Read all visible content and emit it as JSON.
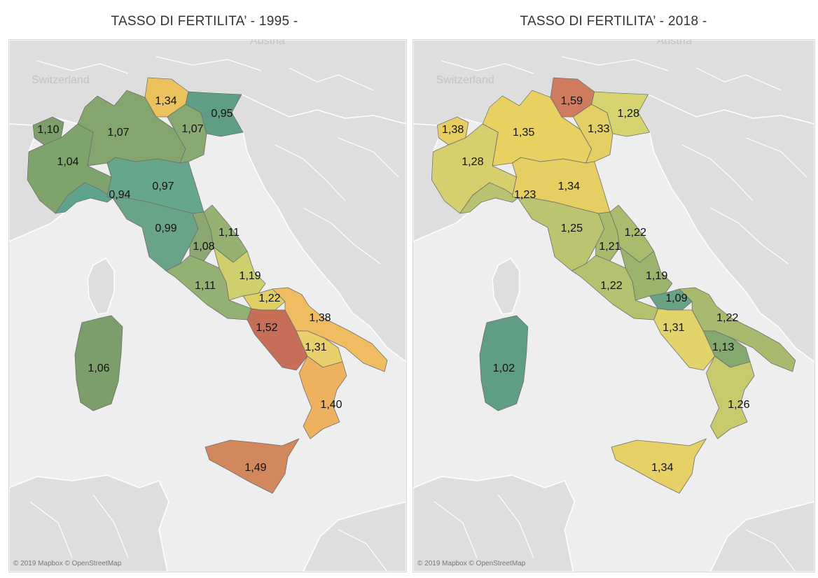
{
  "maps": [
    {
      "title": "TASSO DI FERTILITA’ - 1995 -",
      "credit": "© 2019 Mapbox © OpenStreetMap",
      "country_labels": [
        "Switzerland",
        "Austria"
      ],
      "regions": {
        "valle_aosta": "1,10",
        "piemonte": "1,04",
        "lombardia": "1,07",
        "trentino": "1,34",
        "veneto": "1,07",
        "friuli": "0,95",
        "liguria": "0,94",
        "emilia": "0,97",
        "toscana": "0,99",
        "umbria": "1,08",
        "marche": "1,11",
        "lazio": "1,11",
        "abruzzo": "1,19",
        "molise": "1,22",
        "campania": "1,52",
        "puglia": "1,38",
        "basilicata": "1,31",
        "calabria": "1,40",
        "sicilia": "1,49",
        "sardegna": "1,06"
      },
      "colors": {
        "valle_aosta": "#7c9e6a",
        "piemonte": "#7ea36b",
        "lombardia": "#84a56d",
        "trentino": "#ecc25c",
        "veneto": "#88aa72",
        "friuli": "#5f9e85",
        "liguria": "#5ea48c",
        "emilia": "#66a68a",
        "toscana": "#6aa488",
        "umbria": "#8aa86f",
        "marche": "#94b372",
        "lazio": "#93b172",
        "abruzzo": "#cfd06d",
        "molise": "#e0d064",
        "campania": "#c66e57",
        "puglia": "#efbc62",
        "basilicata": "#ead06a",
        "calabria": "#edb160",
        "sicilia": "#d2875c",
        "sardegna": "#7c9e6a"
      }
    },
    {
      "title": "TASSO DI FERTILITA’ - 2018 -",
      "credit": "© 2019 Mapbox © OpenStreetMap",
      "country_labels": [
        "Switzerland",
        "Austria"
      ],
      "regions": {
        "valle_aosta": "1,38",
        "piemonte": "1,28",
        "lombardia": "1,35",
        "trentino": "1,59",
        "veneto": "1,33",
        "friuli": "1,28",
        "liguria": "1,23",
        "emilia": "1,34",
        "toscana": "1,25",
        "umbria": "1,21",
        "marche": "1,22",
        "lazio": "1,22",
        "abruzzo": "1,19",
        "molise": "1,09",
        "campania": "1,31",
        "puglia": "1,22",
        "basilicata": "1,13",
        "calabria": "1,26",
        "sicilia": "1,34",
        "sardegna": "1,02"
      },
      "colors": {
        "valle_aosta": "#e6ce63",
        "piemonte": "#d6cf6e",
        "lombardia": "#e8d061",
        "trentino": "#cf7b60",
        "veneto": "#e3cf64",
        "friuli": "#d6d471",
        "liguria": "#b9c271",
        "emilia": "#e6ce62",
        "toscana": "#bcc46f",
        "umbria": "#a8ba6c",
        "marche": "#a9bb6d",
        "lazio": "#b3c26e",
        "abruzzo": "#9ab36d",
        "molise": "#6aa285",
        "campania": "#e2d46a",
        "puglia": "#a7ba6d",
        "basilicata": "#85a86f",
        "calabria": "#c9c96e",
        "sicilia": "#e7d066",
        "sardegna": "#5f9e85"
      }
    }
  ]
}
